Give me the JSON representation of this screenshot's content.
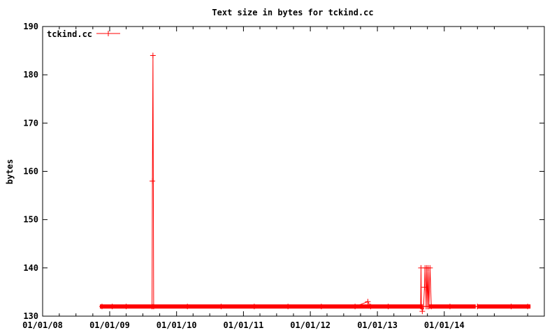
{
  "chart_data": {
    "type": "line",
    "title": "Text size in bytes for tckind.cc",
    "xlabel": "",
    "ylabel": "bytes",
    "legend_position": "top-left",
    "grid": false,
    "line_color": "#ff0000",
    "xlim": [
      "2008-01-01",
      "2015-07-01"
    ],
    "ylim": [
      130,
      190
    ],
    "y_ticks": [
      130,
      140,
      150,
      160,
      170,
      180,
      190
    ],
    "x_ticks": [
      {
        "date": "2008-01-01",
        "label": "01/01/08"
      },
      {
        "date": "2009-01-01",
        "label": "01/01/09"
      },
      {
        "date": "2010-01-01",
        "label": "01/01/10"
      },
      {
        "date": "2011-01-01",
        "label": "01/01/11"
      },
      {
        "date": "2012-01-01",
        "label": "01/01/12"
      },
      {
        "date": "2013-01-01",
        "label": "01/01/13"
      },
      {
        "date": "2014-01-01",
        "label": "01/01/14"
      }
    ],
    "series": [
      {
        "name": "tckind.cc",
        "points": [
          [
            "2008-11-20",
            132
          ],
          [
            "2009-01-15",
            132
          ],
          [
            "2009-04-01",
            132
          ],
          [
            "2009-08-20",
            132
          ],
          [
            "2009-08-22",
            158
          ],
          [
            "2009-08-25",
            184
          ],
          [
            "2009-08-29",
            132
          ],
          [
            "2010-03-01",
            132
          ],
          [
            "2010-09-01",
            132
          ],
          [
            "2011-03-01",
            132
          ],
          [
            "2011-09-01",
            132
          ],
          [
            "2012-03-01",
            132
          ],
          [
            "2012-09-01",
            132
          ],
          [
            "2012-11-10",
            133
          ],
          [
            "2012-11-25",
            132
          ],
          [
            "2013-03-01",
            132
          ],
          [
            "2013-08-25",
            132
          ],
          [
            "2013-08-27",
            140
          ],
          [
            "2013-08-29",
            132
          ],
          [
            "2013-09-03",
            131
          ],
          [
            "2013-09-10",
            132
          ],
          [
            "2013-09-15",
            136
          ],
          [
            "2013-09-18",
            140
          ],
          [
            "2013-09-24",
            132
          ],
          [
            "2013-09-27",
            140
          ],
          [
            "2013-10-02",
            132
          ],
          [
            "2013-10-05",
            140
          ],
          [
            "2013-10-09",
            132
          ],
          [
            "2013-10-15",
            140
          ],
          [
            "2013-10-22",
            132
          ],
          [
            "2014-02-01",
            132
          ],
          [
            "2014-07-01",
            132
          ],
          [
            "2015-01-01",
            132
          ],
          [
            "2015-04-01",
            132
          ]
        ],
        "dense_runs": [
          [
            "2008-11-20",
            "2009-08-20"
          ],
          [
            "2009-08-29",
            "2012-11-05"
          ],
          [
            "2012-11-25",
            "2013-08-25"
          ],
          [
            "2013-10-22",
            "2014-06-10"
          ],
          [
            "2014-07-10",
            "2015-04-05"
          ]
        ]
      }
    ]
  }
}
